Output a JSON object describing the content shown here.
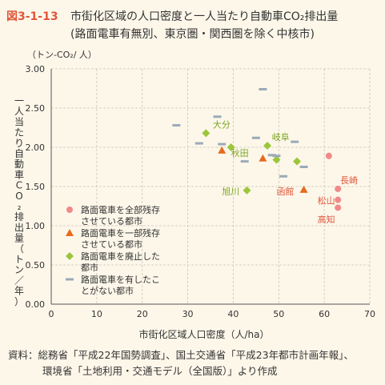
{
  "figure_label": "図3-1-13",
  "title_line1": "市街化区域の人口密度と一人当たり自動車CO₂排出量",
  "title_line2": "(路面電車有無別、東京圏・関西圏を除く中核市)",
  "source_label": "資料：",
  "source_line1": "総務省「平成22年国勢調査」、国土交通省「平成23年都市計画年報」、",
  "source_line2": "環境省「土地利用・交通モデル（全国版）」より作成",
  "colors": {
    "accent": "#e1573b",
    "full": "#ef8a8a",
    "partial": "#e66b1e",
    "abolished": "#9cc63a",
    "never": "#9aaab8",
    "label_red": "#e1573b",
    "label_green": "#7aa51e"
  },
  "chart_data": {
    "type": "scatter",
    "xlabel": "市街化区域人口密度（人/ha）",
    "ylabel": "一人当たり自動車CO₂排出量（トン／年）",
    "yunit": "（トン-CO₂/ 人）",
    "xlim": [
      0,
      70
    ],
    "ylim": [
      0,
      3.0
    ],
    "xticks": [
      "0",
      "10",
      "20",
      "30",
      "40",
      "50",
      "60",
      "70"
    ],
    "yticks": [
      "0.00",
      "0.50",
      "1.00",
      "1.50",
      "2.00",
      "2.50",
      "3.00"
    ],
    "grid": true,
    "legend_position": "bottom-left",
    "series": [
      {
        "name": "路面電車を全部残存させている都市",
        "marker": "circle",
        "points": [
          [
            61,
            1.89
          ],
          [
            63,
            1.47
          ],
          [
            63,
            1.33
          ],
          [
            63,
            1.23
          ]
        ]
      },
      {
        "name": "路面電車を一部残存させている都市",
        "marker": "triangle",
        "points": [
          [
            37.5,
            1.96
          ],
          [
            46.5,
            1.86
          ],
          [
            55.5,
            1.46
          ]
        ]
      },
      {
        "name": "路面電車を廃止した都市",
        "marker": "diamond",
        "points": [
          [
            34,
            2.18
          ],
          [
            39.5,
            2.0
          ],
          [
            47.5,
            2.02
          ],
          [
            49.5,
            1.84
          ],
          [
            54,
            1.82
          ],
          [
            43,
            1.45
          ]
        ]
      },
      {
        "name": "路面電車を有したことがない都市",
        "marker": "dash",
        "points": [
          [
            27.5,
            2.28
          ],
          [
            32.5,
            2.05
          ],
          [
            36.5,
            2.39
          ],
          [
            37.5,
            2.04
          ],
          [
            42.5,
            1.82
          ],
          [
            45,
            2.12
          ],
          [
            46.5,
            2.74
          ],
          [
            48.5,
            1.9
          ],
          [
            49.5,
            1.89
          ],
          [
            51,
            1.63
          ],
          [
            53.5,
            2.07
          ],
          [
            55.5,
            1.75
          ]
        ]
      }
    ],
    "annotations": [
      {
        "text": "大分",
        "x": 35.5,
        "y": 2.25,
        "color": "label_green"
      },
      {
        "text": "岐阜",
        "x": 48.5,
        "y": 2.09,
        "color": "label_green"
      },
      {
        "text": "秋田",
        "x": 39.5,
        "y": 1.89,
        "color": "label_green"
      },
      {
        "text": "旭川",
        "x": 37.5,
        "y": 1.4,
        "color": "label_green"
      },
      {
        "text": "函館",
        "x": 49.5,
        "y": 1.4,
        "color": "label_red"
      },
      {
        "text": "長崎",
        "x": 63.5,
        "y": 1.54,
        "color": "label_red"
      },
      {
        "text": "松山",
        "x": 58.5,
        "y": 1.28,
        "color": "label_red"
      },
      {
        "text": "高知",
        "x": 58.5,
        "y": 1.04,
        "color": "label_red"
      }
    ]
  }
}
